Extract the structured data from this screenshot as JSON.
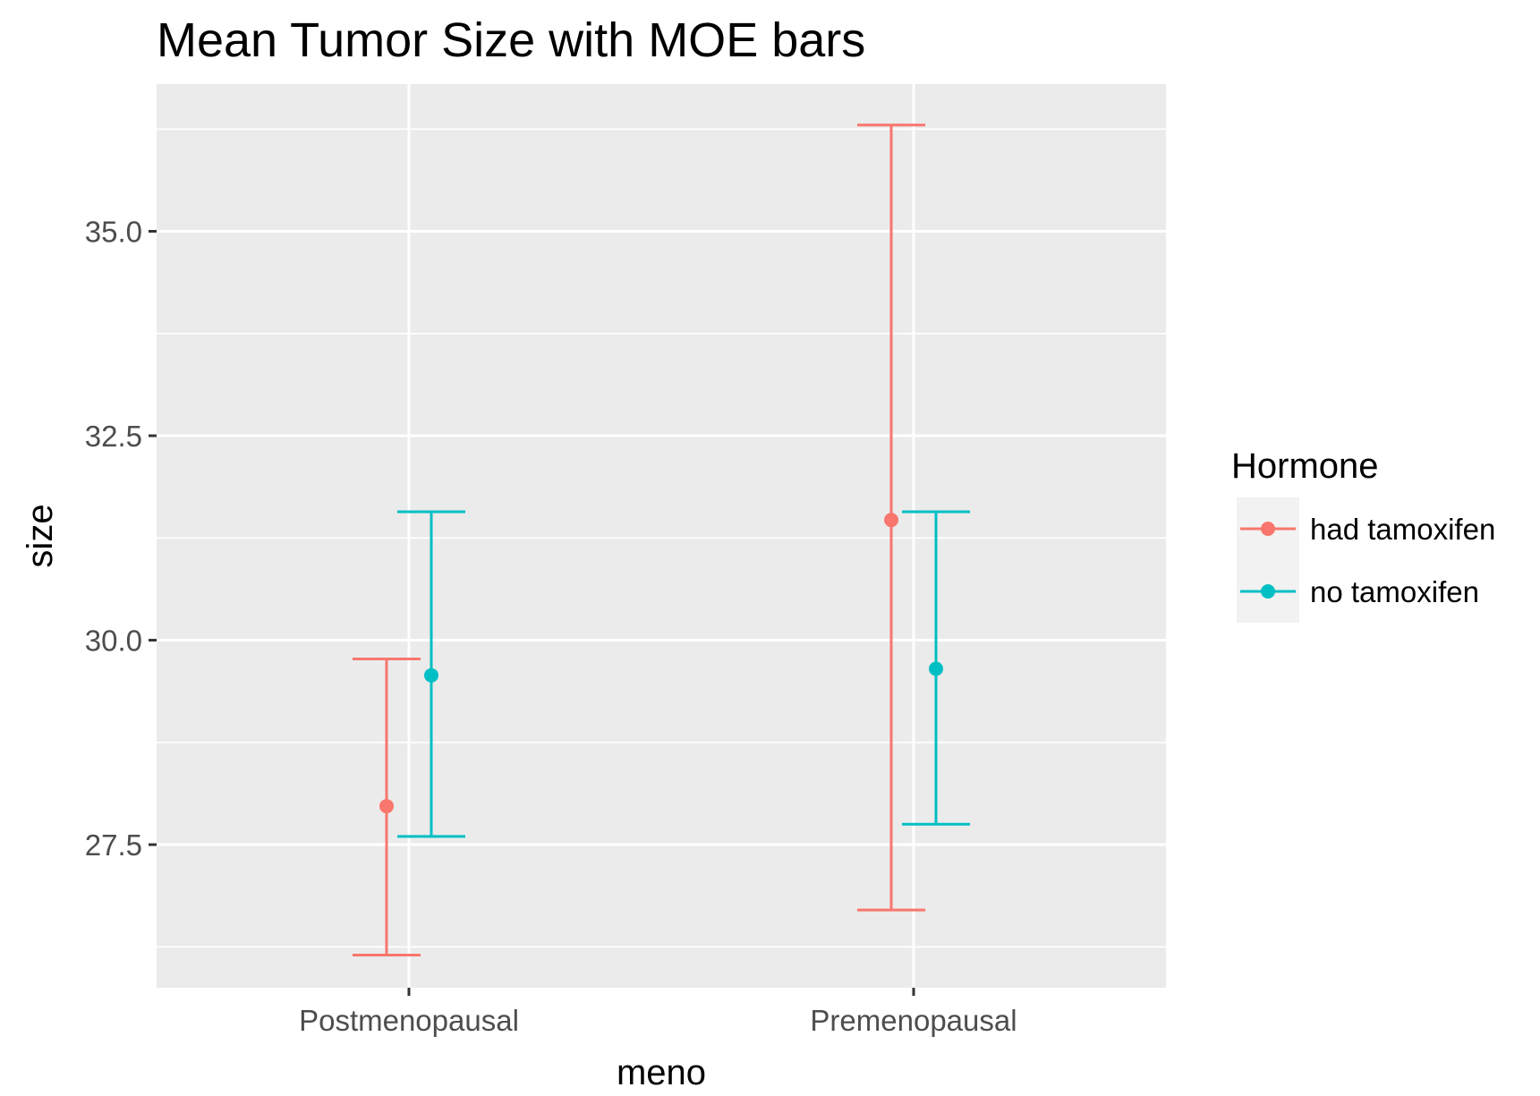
{
  "chart_data": {
    "type": "scatter",
    "title": "Mean Tumor Size with MOE bars",
    "xlabel": "meno",
    "ylabel": "size",
    "categories": [
      "Postmenopausal",
      "Premenopausal"
    ],
    "ylim": [
      25.75,
      36.8
    ],
    "yticks": [
      27.5,
      30.0,
      32.5,
      35.0
    ],
    "ytick_labels": [
      "27.5",
      "30.0",
      "32.5",
      "35.0"
    ],
    "grid": true,
    "legend": {
      "title": "Hormone",
      "position": "right"
    },
    "series": [
      {
        "name": "had tamoxifen",
        "color": "#F8766D",
        "mean": [
          27.97,
          31.47
        ],
        "lower": [
          26.15,
          26.7
        ],
        "upper": [
          29.77,
          36.3
        ]
      },
      {
        "name": "no tamoxifen",
        "color": "#00BFC4",
        "mean": [
          29.57,
          29.65
        ],
        "lower": [
          27.6,
          27.75
        ],
        "upper": [
          31.57,
          31.57
        ]
      }
    ]
  }
}
